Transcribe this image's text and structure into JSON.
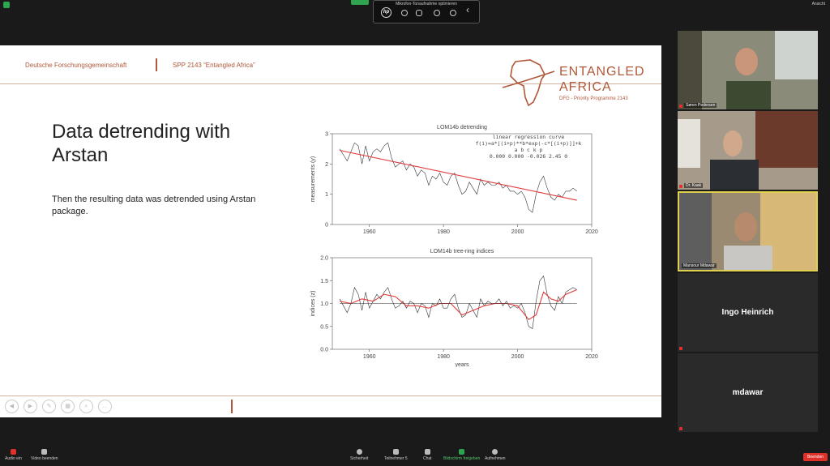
{
  "zoom_top": {
    "hp_title": "Mikrofon-Tonaufnahme optimieren",
    "hp_logo": "hp",
    "view_label": "Ansicht"
  },
  "slide": {
    "header_left": "Deutsche Forschungsgemeinschaft",
    "header_project": "SPP 2143 “Entangled Africa”",
    "logo_line1": "ENTANGLED",
    "logo_line2": "AFRICA",
    "logo_line3": "DFG - Priority Programme 2143",
    "title": "Data detrending with Arstan",
    "body": "Then the resulting data was detrended using Arstan package."
  },
  "chart_data": [
    {
      "type": "line",
      "title": "LOM14b detrending",
      "ylabel": "measurements (y)",
      "xlabel": "",
      "xlim": [
        1950,
        2020
      ],
      "ylim": [
        0,
        3
      ],
      "xticks": [
        "1960",
        "1980",
        "2000",
        "2020"
      ],
      "yticks": [
        "0",
        "1",
        "2",
        "3"
      ],
      "annotation": {
        "l1": "linear regression curve",
        "l2": "f(i)=a*[(i+p)**b*exp(-c*[(i+p)]]+k",
        "l3": "a        b        c        k       p",
        "l4": "0.000  0.000 -0.026   2.45     0"
      },
      "series": [
        {
          "color": "#333333",
          "x": [
            1952,
            1953,
            1954,
            1955,
            1956,
            1957,
            1958,
            1959,
            1960,
            1961,
            1962,
            1963,
            1964,
            1965,
            1966,
            1967,
            1968,
            1969,
            1970,
            1971,
            1972,
            1973,
            1974,
            1975,
            1976,
            1977,
            1978,
            1979,
            1980,
            1981,
            1982,
            1983,
            1984,
            1985,
            1986,
            1987,
            1988,
            1989,
            1990,
            1991,
            1992,
            1993,
            1994,
            1995,
            1996,
            1997,
            1998,
            1999,
            2000,
            2001,
            2002,
            2003,
            2004,
            2005,
            2006,
            2007,
            2008,
            2009,
            2010,
            2011,
            2012,
            2013,
            2014,
            2015,
            2016
          ],
          "y": [
            2.5,
            2.3,
            2.1,
            2.4,
            2.7,
            2.6,
            2.0,
            2.6,
            2.1,
            2.4,
            2.5,
            2.4,
            2.6,
            2.7,
            2.2,
            1.9,
            2.0,
            2.1,
            1.8,
            2.0,
            1.9,
            1.6,
            1.8,
            1.7,
            1.3,
            1.6,
            1.5,
            1.7,
            1.4,
            1.3,
            1.6,
            1.7,
            1.3,
            1.0,
            1.1,
            1.4,
            1.2,
            1.0,
            1.5,
            1.3,
            1.4,
            1.3,
            1.3,
            1.4,
            1.2,
            1.3,
            1.1,
            1.1,
            1.0,
            1.1,
            0.9,
            0.5,
            0.4,
            1.0,
            1.4,
            1.6,
            1.2,
            0.9,
            0.8,
            1.0,
            0.9,
            1.1,
            1.1,
            1.2,
            1.1
          ]
        },
        {
          "color": "#e03c3c",
          "x": [
            1952,
            2016
          ],
          "y": [
            2.45,
            0.8
          ]
        }
      ]
    },
    {
      "type": "line",
      "title": "LOM14b tree-ring indices",
      "ylabel": "indices (z)",
      "xlabel": "years",
      "xlim": [
        1950,
        2020
      ],
      "ylim": [
        0,
        2
      ],
      "xticks": [
        "1960",
        "1980",
        "2000",
        "2020"
      ],
      "yticks": [
        "0.0",
        "0.5",
        "1.0",
        "1.5",
        "2.0"
      ],
      "series": [
        {
          "color": "#333333",
          "x": [
            1952,
            1953,
            1954,
            1955,
            1956,
            1957,
            1958,
            1959,
            1960,
            1961,
            1962,
            1963,
            1964,
            1965,
            1966,
            1967,
            1968,
            1969,
            1970,
            1971,
            1972,
            1973,
            1974,
            1975,
            1976,
            1977,
            1978,
            1979,
            1980,
            1981,
            1982,
            1983,
            1984,
            1985,
            1986,
            1987,
            1988,
            1989,
            1990,
            1991,
            1992,
            1993,
            1994,
            1995,
            1996,
            1997,
            1998,
            1999,
            2000,
            2001,
            2002,
            2003,
            2004,
            2005,
            2006,
            2007,
            2008,
            2009,
            2010,
            2011,
            2012,
            2013,
            2014,
            2015,
            2016
          ],
          "y": [
            1.1,
            0.95,
            0.8,
            1.0,
            1.35,
            1.2,
            0.85,
            1.25,
            0.9,
            1.05,
            1.2,
            1.1,
            1.25,
            1.35,
            1.1,
            0.9,
            0.95,
            1.05,
            0.9,
            1.05,
            1.0,
            0.8,
            1.0,
            0.95,
            0.7,
            1.0,
            0.95,
            1.1,
            0.9,
            0.9,
            1.1,
            1.2,
            0.9,
            0.7,
            0.75,
            1.0,
            0.85,
            0.7,
            1.1,
            0.95,
            1.05,
            1.0,
            1.0,
            1.1,
            0.95,
            1.05,
            0.9,
            0.95,
            0.9,
            1.0,
            0.8,
            0.5,
            0.45,
            1.05,
            1.5,
            1.6,
            1.2,
            0.95,
            0.85,
            1.15,
            1.0,
            1.25,
            1.3,
            1.35,
            1.3
          ]
        },
        {
          "color": "#e03c3c",
          "x": [
            1952,
            1955,
            1958,
            1961,
            1964,
            1967,
            1970,
            1973,
            1976,
            1979,
            1982,
            1985,
            1988,
            1991,
            1994,
            1997,
            2000,
            2003,
            2005,
            2007,
            2009,
            2011,
            2013,
            2016
          ],
          "y": [
            1.05,
            1.0,
            1.1,
            1.05,
            1.2,
            1.15,
            0.95,
            0.95,
            0.9,
            1.0,
            1.0,
            0.75,
            0.85,
            0.95,
            1.0,
            1.0,
            0.95,
            0.65,
            0.75,
            1.25,
            1.1,
            1.05,
            1.2,
            1.3
          ]
        },
        {
          "color": "#333333",
          "x": [
            1952,
            2016
          ],
          "y": [
            1.0,
            1.0
          ]
        }
      ]
    }
  ],
  "participants": [
    {
      "name": "Søren Pedersen"
    },
    {
      "name": "Dr. Kaak"
    },
    {
      "name": "Mansour Mdawar"
    },
    {
      "name": "Ingo Heinrich"
    },
    {
      "name": "mdawar"
    }
  ],
  "toolbar": {
    "audio": "Audio ein",
    "video": "Video beenden",
    "security": "Sicherheit",
    "participants": "Teilnehmer",
    "participants_count": "5",
    "chat": "Chat",
    "share": "Bildschirm freigeben",
    "record": "Aufnehmen",
    "end": "Beenden"
  },
  "colors": {
    "accent": "#b0583a",
    "share_green": "#2fa44f",
    "end_red": "#e0302a"
  }
}
